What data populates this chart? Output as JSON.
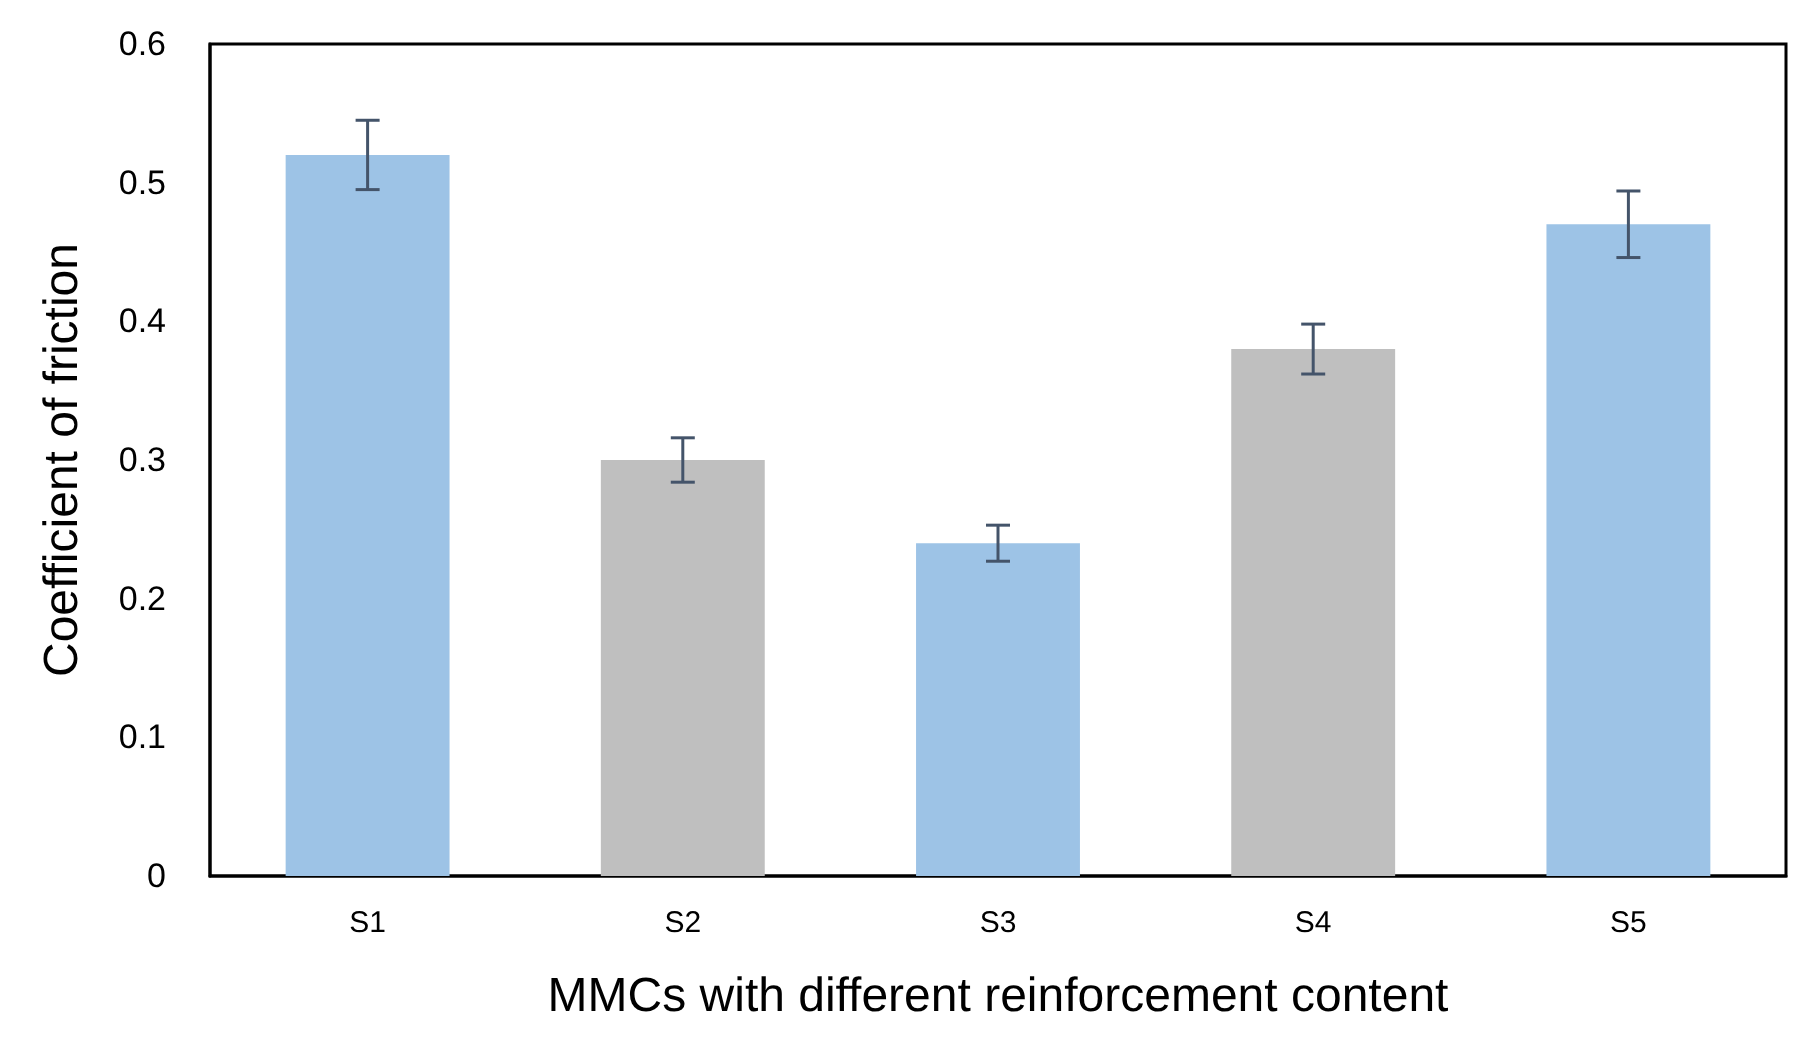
{
  "chart_data": {
    "type": "bar",
    "xlabel": "MMCs with different reinforcement content",
    "ylabel": "Coefficient of friction",
    "categories": [
      "S1",
      "S2",
      "S3",
      "S4",
      "S5"
    ],
    "values": [
      0.52,
      0.3,
      0.24,
      0.38,
      0.47
    ],
    "errors": [
      0.025,
      0.016,
      0.013,
      0.018,
      0.024
    ],
    "colors": [
      "#9dc3e6",
      "#bfbfbf",
      "#9dc3e6",
      "#bfbfbf",
      "#9dc3e6"
    ],
    "ylim": [
      0,
      0.6
    ],
    "yticks": [
      0,
      0.1,
      0.2,
      0.3,
      0.4,
      0.5,
      0.6
    ],
    "grid": false
  }
}
